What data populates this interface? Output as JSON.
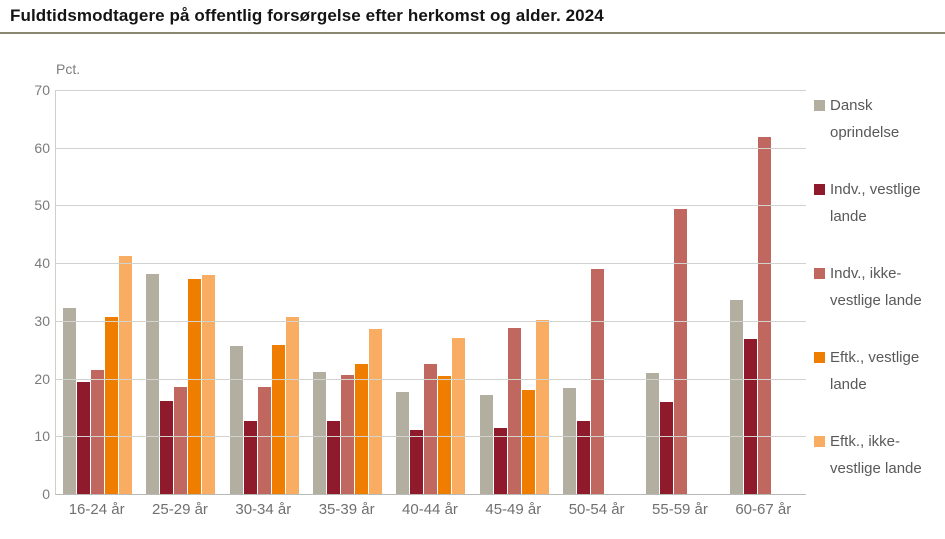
{
  "title": "Fuldtidsmodtagere på offentlig forsørgelse efter herkomst og alder. 2024",
  "chart_data": {
    "type": "bar",
    "unit_label": "Pct.",
    "categories": [
      "16-24 år",
      "25-29 år",
      "30-34 år",
      "35-39 år",
      "40-44 år",
      "45-49 år",
      "50-54 år",
      "55-59 år",
      "60-67 år"
    ],
    "series": [
      {
        "name": "Dansk oprindelse",
        "color": "#b2afa0",
        "values": [
          32.2,
          38.2,
          25.6,
          21.1,
          17.7,
          17.2,
          18.4,
          21.0,
          33.7
        ]
      },
      {
        "name": "Indv., vestlige lande",
        "color": "#8e1a2b",
        "values": [
          19.4,
          16.2,
          12.6,
          12.7,
          11.1,
          11.5,
          12.7,
          15.9,
          26.9
        ]
      },
      {
        "name": "Indv., ikke-vestlige lande",
        "color": "#c0675f",
        "values": [
          21.5,
          18.6,
          18.6,
          20.6,
          22.6,
          28.8,
          39.0,
          49.4,
          61.9
        ]
      },
      {
        "name": "Eftk., vestlige lande",
        "color": "#ee7d00",
        "values": [
          30.6,
          37.3,
          25.8,
          22.5,
          20.4,
          18.0,
          null,
          null,
          null
        ]
      },
      {
        "name": "Eftk., ikke-vestlige lande",
        "color": "#f8ad62",
        "values": [
          41.2,
          38.0,
          30.6,
          28.6,
          27.0,
          30.2,
          null,
          null,
          null
        ]
      }
    ],
    "ylabel": "Pct.",
    "xlabel": "",
    "ylim": [
      0,
      70
    ],
    "ytick_step": 10,
    "grid": true,
    "legend_position": "right"
  },
  "colors": {
    "title_rule": "#8a8773",
    "gridline": "#d2d2cf",
    "axis_text": "#7b7b7b",
    "legend_text": "#595959"
  }
}
